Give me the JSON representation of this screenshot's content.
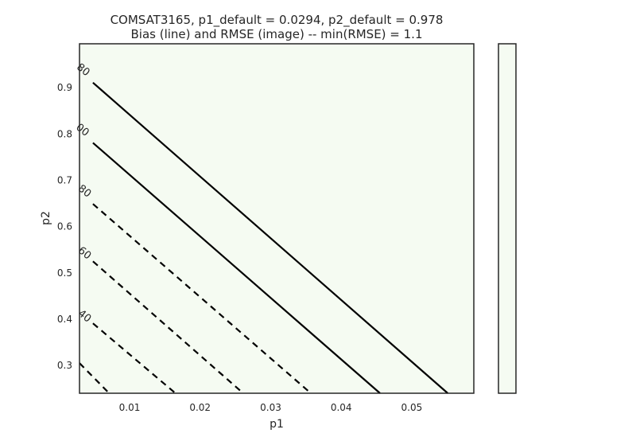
{
  "chart_data": {
    "type": "contour",
    "title": "COMSAT3165, p1_default = 0.0294, p2_default = 0.978",
    "subtitle": "Bias (line) and RMSE (image) -- min(RMSE) = 1.1",
    "xlabel": "p1",
    "ylabel": "p2",
    "xlim": [
      0.0029,
      0.0588
    ],
    "ylim": [
      0.24,
      0.995
    ],
    "xticks": [
      0.01,
      0.02,
      0.03,
      0.04,
      0.05
    ],
    "xtick_labels": [
      "0.01",
      "0.02",
      "0.03",
      "0.04",
      "0.05"
    ],
    "yticks": [
      0.3,
      0.4,
      0.5,
      0.6,
      0.7,
      0.8,
      0.9
    ],
    "ytick_labels": [
      "0.3",
      "0.4",
      "0.5",
      "0.6",
      "0.7",
      "0.8",
      "0.9"
    ],
    "grid": false,
    "image_color": "#f5fbf2",
    "contour_color": "#000000",
    "colorbar": true,
    "contours": [
      {
        "label": "40",
        "dashed": true,
        "points": [
          [
            0.0029,
            0.305
          ],
          [
            0.0071,
            0.24
          ]
        ]
      },
      {
        "label": "",
        "dashed": true,
        "points": [
          [
            0.0048,
            0.391
          ],
          [
            0.0165,
            0.24
          ]
        ]
      },
      {
        "label": "",
        "dashed": true,
        "points": [
          [
            0.0048,
            0.525
          ],
          [
            0.0261,
            0.24
          ]
        ]
      },
      {
        "label": "",
        "dashed": true,
        "points": [
          [
            0.0048,
            0.649
          ],
          [
            0.0357,
            0.24
          ]
        ]
      },
      {
        "label": "",
        "dashed": false,
        "points": [
          [
            0.0048,
            0.781
          ],
          [
            0.0455,
            0.24
          ]
        ]
      },
      {
        "label": "",
        "dashed": false,
        "points": [
          [
            0.0048,
            0.911
          ],
          [
            0.0551,
            0.24
          ]
        ]
      }
    ],
    "contour_labels": [
      {
        "text": "40",
        "x": 0.0036,
        "y": 0.406
      },
      {
        "text": "60",
        "x": 0.0036,
        "y": 0.542
      },
      {
        "text": "80",
        "x": 0.0036,
        "y": 0.676
      },
      {
        "text": "00",
        "x": 0.0033,
        "y": 0.808
      },
      {
        "text": "80",
        "x": 0.0034,
        "y": 0.938
      }
    ]
  }
}
